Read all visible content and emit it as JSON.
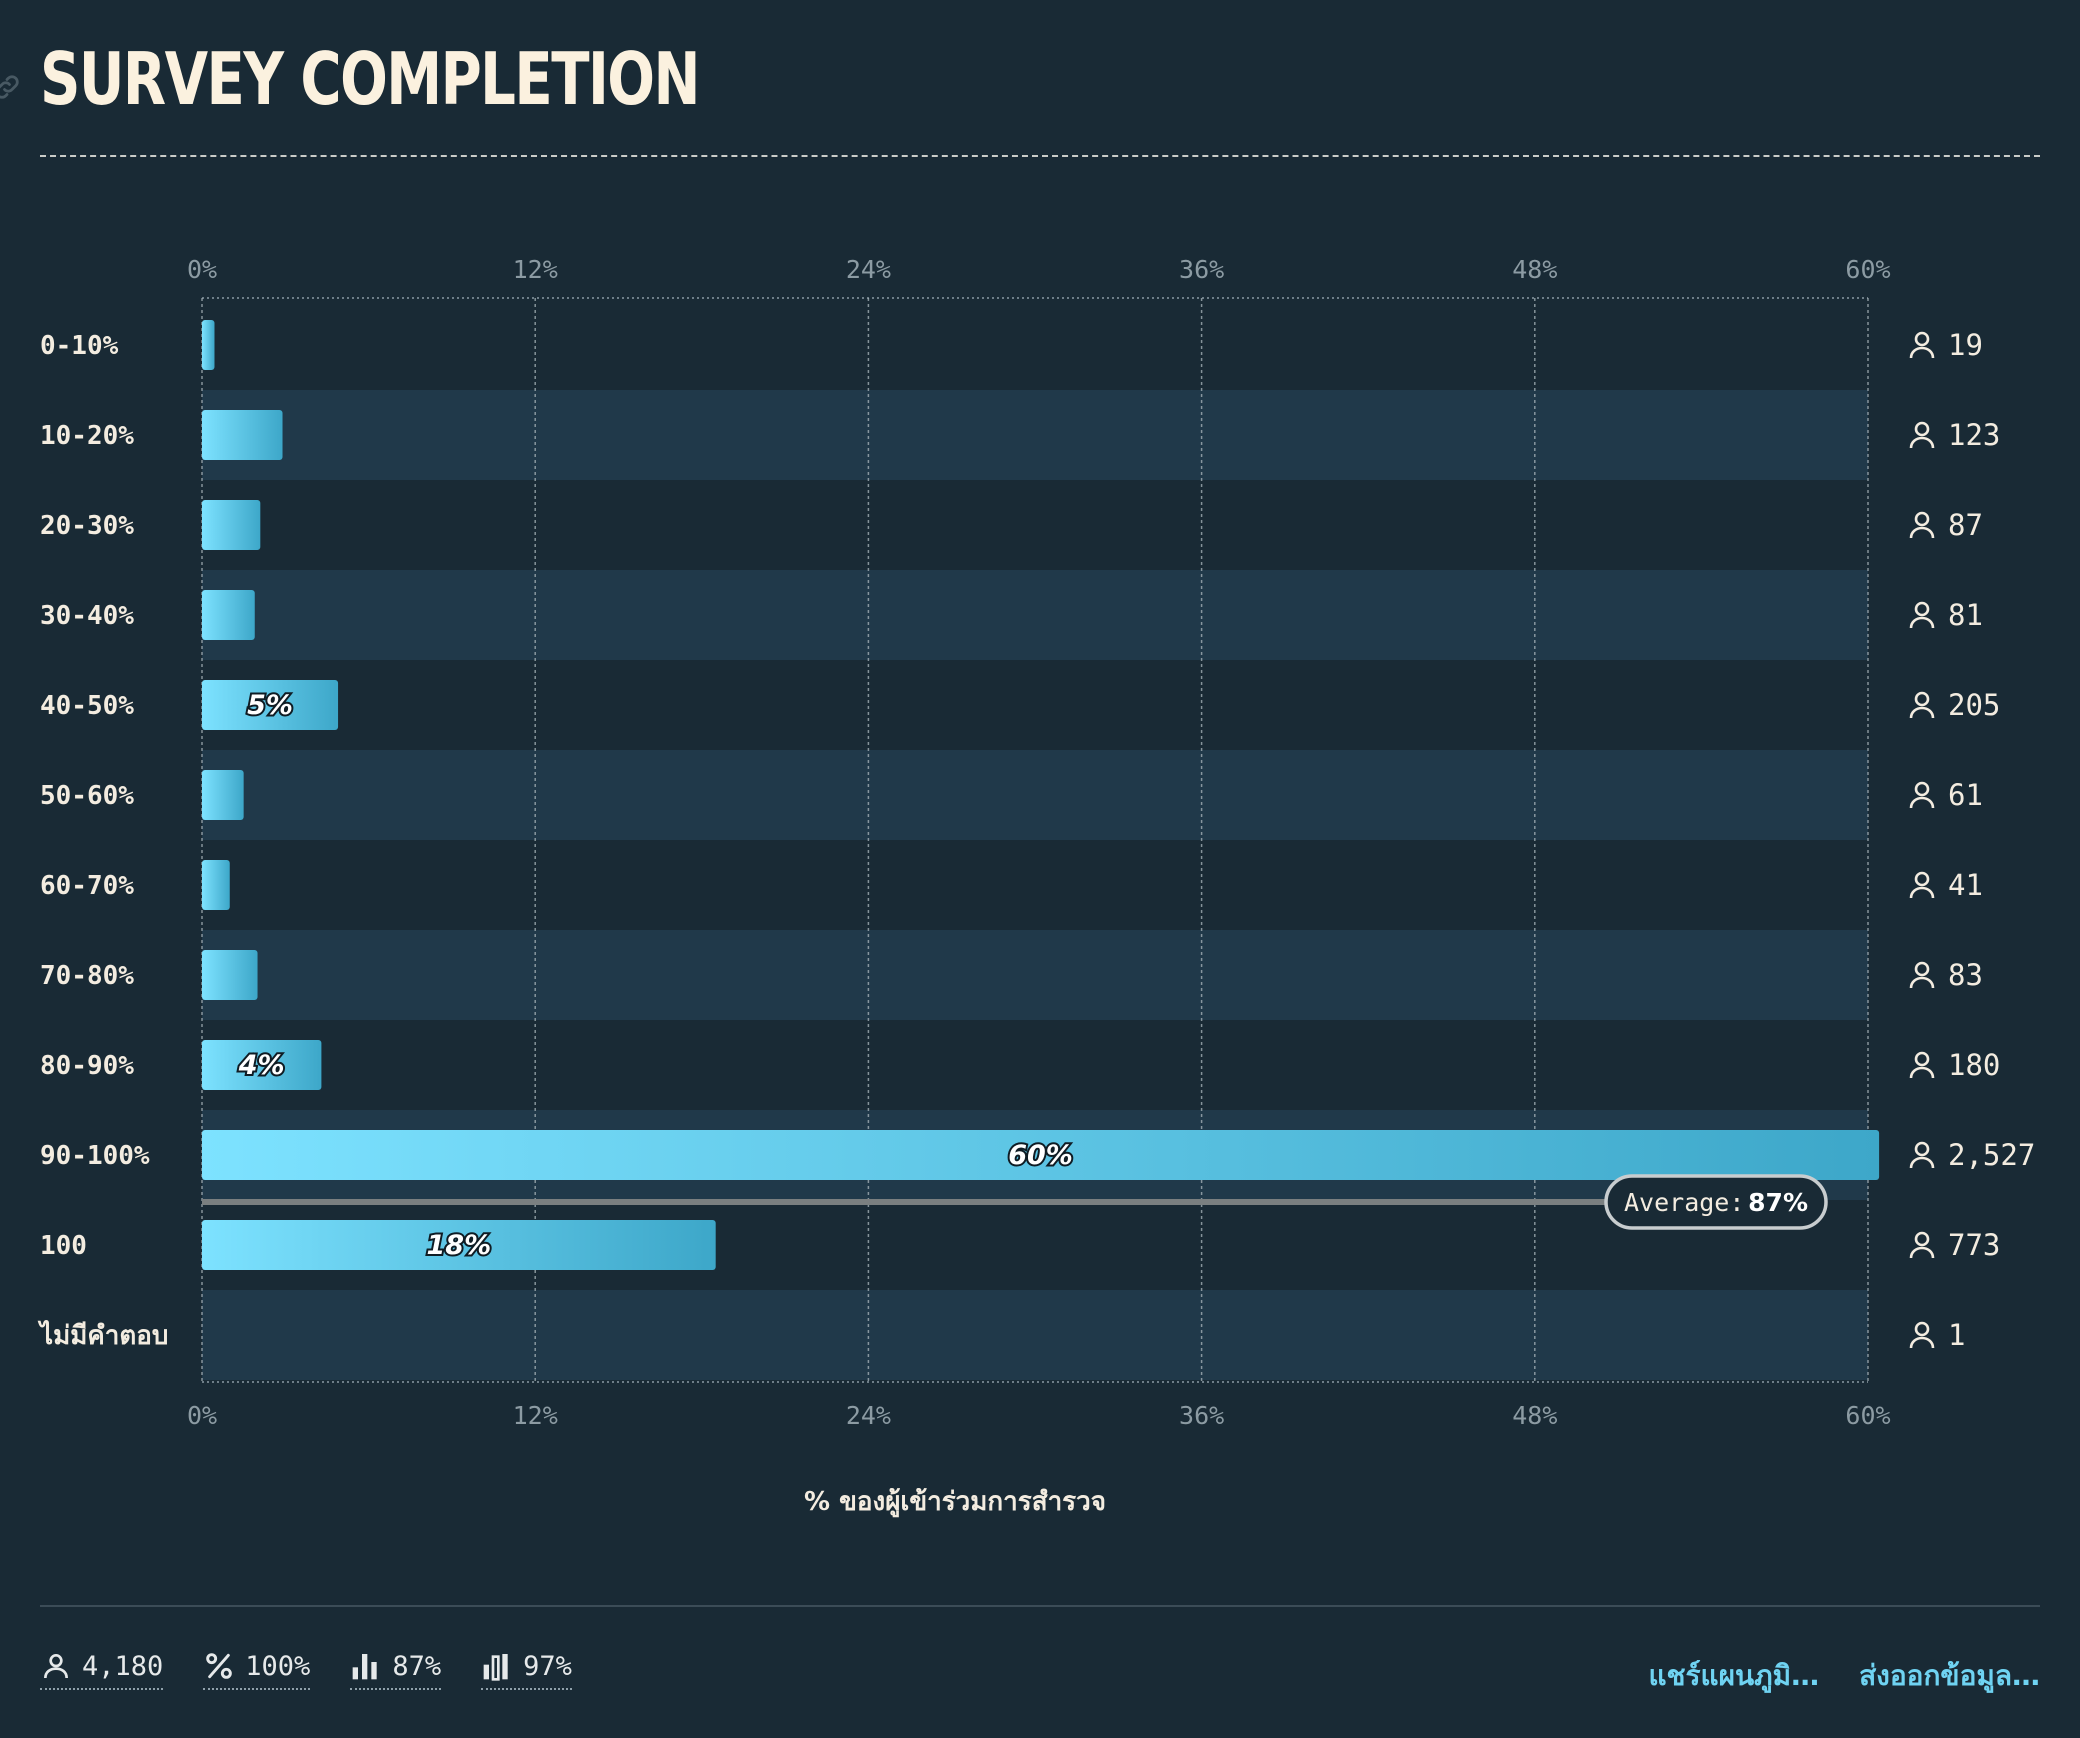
{
  "header": {
    "title": "SURVEY COMPLETION"
  },
  "chart_data": {
    "type": "bar",
    "orientation": "horizontal",
    "title": "SURVEY COMPLETION",
    "xlabel": "% ของผู้เข้าร่วมการสำรวจ",
    "xlim": [
      0,
      60
    ],
    "xticks": [
      "0%",
      "12%",
      "24%",
      "36%",
      "48%",
      "60%"
    ],
    "categories": [
      "0-10%",
      "10-20%",
      "20-30%",
      "30-40%",
      "40-50%",
      "50-60%",
      "60-70%",
      "70-80%",
      "80-90%",
      "90-100%",
      "100",
      "ไม่มีคำตอบ"
    ],
    "values": [
      0.45,
      2.9,
      2.1,
      1.9,
      4.9,
      1.5,
      1.0,
      2.0,
      4.3,
      60.4,
      18.5,
      0.02
    ],
    "bar_labels": [
      "",
      "",
      "",
      "",
      "5%",
      "",
      "",
      "",
      "4%",
      "60%",
      "18%",
      ""
    ],
    "counts": [
      "19",
      "123",
      "87",
      "81",
      "205",
      "61",
      "41",
      "83",
      "180",
      "2,527",
      "773",
      "1"
    ],
    "average": {
      "label": "Average:",
      "value_label": "87%"
    },
    "grid": true,
    "colors": {
      "bar_start": "#7de2ff",
      "bar_end": "#3da7c9",
      "stripe": "#20394a",
      "background": "#192a35"
    }
  },
  "footer": {
    "stats": [
      {
        "icon": "person-icon",
        "value": "4,180"
      },
      {
        "icon": "percent-icon",
        "value": "100%"
      },
      {
        "icon": "median-bars-icon",
        "value": "87%"
      },
      {
        "icon": "bars-icon",
        "value": "97%"
      }
    ],
    "actions": {
      "share": "แชร์แผนภูมิ…",
      "export": "ส่งออกข้อมูล…"
    }
  }
}
